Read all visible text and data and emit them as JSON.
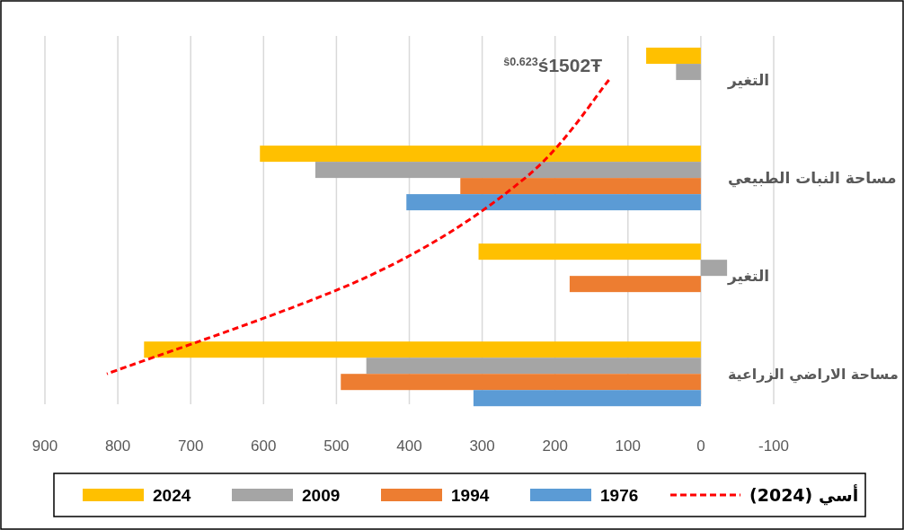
{
  "chart_data": {
    "type": "bar",
    "orientation": "horizontal",
    "categories": [
      "التغير",
      "مساحة النبات الطبيعي",
      "التغير",
      "مساحة الاراضي الزراعية"
    ],
    "series": [
      {
        "name": "2024",
        "color": "#ffc000",
        "values": [
          75,
          605,
          305,
          764
        ]
      },
      {
        "name": "2009",
        "color": "#a5a5a5",
        "values": [
          34,
          529,
          -36,
          459
        ]
      },
      {
        "name": "1994",
        "color": "#ed7d31",
        "values": [
          null,
          330,
          180,
          494
        ]
      },
      {
        "name": "1976",
        "color": "#5b9bd5",
        "values": [
          null,
          404,
          null,
          312
        ]
      },
      {
        "name": "أسي (2024)",
        "type": "line",
        "color": "#ff0000",
        "line_style": "dashed",
        "marker": "none",
        "values": [
          126,
          241,
          455,
          815
        ]
      }
    ],
    "xlim": [
      900,
      -100
    ],
    "xticks": [
      900,
      800,
      700,
      600,
      500,
      400,
      300,
      200,
      100,
      0,
      -100
    ],
    "grid": "x",
    "legend": "bottom",
    "annotations": [
      "$^{ŝ0.623}$ś1502Ŧ"
    ]
  }
}
